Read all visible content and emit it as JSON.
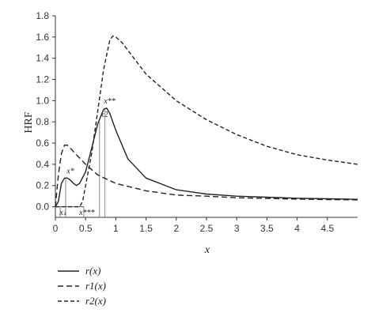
{
  "chart_data": {
    "type": "line",
    "xlabel": "x",
    "ylabel": "HRF",
    "xlim": [
      0,
      5
    ],
    "ylim": [
      -0.1,
      1.8
    ],
    "x_ticks": [
      0,
      0.5,
      1,
      1.5,
      2,
      2.5,
      3,
      3.5,
      4,
      4.5
    ],
    "x_tick_labels": [
      "0",
      "0.5",
      "1",
      "1.5",
      "2",
      "2.5",
      "3",
      "3.5",
      "4",
      "4.5"
    ],
    "y_ticks": [
      0,
      0.2,
      0.4,
      0.6,
      0.8,
      1.0,
      1.2,
      1.4,
      1.6,
      1.8
    ],
    "y_tick_labels": [
      "0.0",
      "0.2",
      "0.4",
      "0.6",
      "0.8",
      "1.0",
      "1.2",
      "1.4",
      "1.6",
      "1.8"
    ],
    "grid": false,
    "legend_position": "below-left",
    "series": [
      {
        "name": "r(x)",
        "style": "solid",
        "color": "#222222",
        "points": [
          [
            0,
            0
          ],
          [
            0.05,
            0.05
          ],
          [
            0.1,
            0.22
          ],
          [
            0.15,
            0.27
          ],
          [
            0.2,
            0.27
          ],
          [
            0.25,
            0.25
          ],
          [
            0.3,
            0.22
          ],
          [
            0.35,
            0.2
          ],
          [
            0.4,
            0.22
          ],
          [
            0.5,
            0.33
          ],
          [
            0.6,
            0.55
          ],
          [
            0.7,
            0.78
          ],
          [
            0.8,
            0.92
          ],
          [
            0.85,
            0.93
          ],
          [
            0.9,
            0.88
          ],
          [
            1.0,
            0.72
          ],
          [
            1.2,
            0.45
          ],
          [
            1.5,
            0.27
          ],
          [
            2.0,
            0.16
          ],
          [
            2.5,
            0.12
          ],
          [
            3.0,
            0.1
          ],
          [
            3.5,
            0.09
          ],
          [
            4.0,
            0.08
          ],
          [
            4.5,
            0.075
          ],
          [
            5.0,
            0.07
          ]
        ]
      },
      {
        "name": "r1(x)",
        "style": "dashed-long",
        "color": "#222222",
        "points": [
          [
            0,
            0
          ],
          [
            0.05,
            0.3
          ],
          [
            0.1,
            0.5
          ],
          [
            0.15,
            0.58
          ],
          [
            0.2,
            0.58
          ],
          [
            0.3,
            0.52
          ],
          [
            0.5,
            0.4
          ],
          [
            0.7,
            0.3
          ],
          [
            1.0,
            0.22
          ],
          [
            1.5,
            0.15
          ],
          [
            2.0,
            0.11
          ],
          [
            2.5,
            0.1
          ],
          [
            3.0,
            0.085
          ],
          [
            3.5,
            0.078
          ],
          [
            4.0,
            0.072
          ],
          [
            4.5,
            0.068
          ],
          [
            5.0,
            0.065
          ]
        ]
      },
      {
        "name": "r2(x)",
        "style": "dashed-short",
        "color": "#222222",
        "points": [
          [
            0,
            0
          ],
          [
            0.4,
            0.0
          ],
          [
            0.45,
            0.05
          ],
          [
            0.5,
            0.2
          ],
          [
            0.6,
            0.5
          ],
          [
            0.7,
            0.9
          ],
          [
            0.8,
            1.3
          ],
          [
            0.9,
            1.57
          ],
          [
            0.95,
            1.61
          ],
          [
            1.0,
            1.6
          ],
          [
            1.1,
            1.55
          ],
          [
            1.3,
            1.4
          ],
          [
            1.5,
            1.25
          ],
          [
            2.0,
            1.0
          ],
          [
            2.5,
            0.82
          ],
          [
            3.0,
            0.68
          ],
          [
            3.5,
            0.57
          ],
          [
            4.0,
            0.49
          ],
          [
            4.5,
            0.44
          ],
          [
            5.0,
            0.4
          ]
        ]
      }
    ],
    "markers": [
      {
        "x": 0.08,
        "label": "x1",
        "height": 0
      },
      {
        "x": 0.17,
        "label": "x*",
        "height": 0.27
      },
      {
        "x": 0.47,
        "label": "x***",
        "height": 0
      },
      {
        "x": 0.73,
        "label": "x2",
        "height": 0.8
      },
      {
        "x": 0.82,
        "label": "x**",
        "height": 0.93
      }
    ]
  },
  "legend": [
    {
      "label": "r(x)",
      "style": "solid"
    },
    {
      "label": "r1(x)",
      "style": "dashed-long"
    },
    {
      "label": "r2(x)",
      "style": "dashed-short"
    }
  ]
}
